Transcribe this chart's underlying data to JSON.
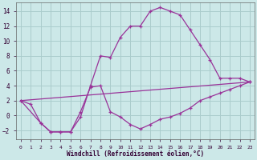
{
  "xlabel": "Windchill (Refroidissement éolien,°C)",
  "background_color": "#cce8e8",
  "grid_color": "#aacccc",
  "line_color": "#993399",
  "xlim": [
    -0.5,
    23.5
  ],
  "ylim": [
    -3.2,
    15.2
  ],
  "xticks": [
    0,
    1,
    2,
    3,
    4,
    5,
    6,
    7,
    8,
    9,
    10,
    11,
    12,
    13,
    14,
    15,
    16,
    17,
    18,
    19,
    20,
    21,
    22,
    23
  ],
  "yticks": [
    -2,
    0,
    2,
    4,
    6,
    8,
    10,
    12,
    14
  ],
  "line1_x": [
    0,
    1,
    2,
    3,
    4,
    5,
    6,
    7,
    8,
    9,
    10,
    11,
    12,
    13,
    14,
    15,
    16,
    17,
    18,
    19,
    20,
    21,
    22,
    23
  ],
  "line1_y": [
    2.0,
    1.5,
    -1.0,
    -2.2,
    -2.2,
    -2.2,
    -0.2,
    4.0,
    8.0,
    7.8,
    10.5,
    12.0,
    12.0,
    14.0,
    14.5,
    14.0,
    13.5,
    11.5,
    9.5,
    7.5,
    5.0,
    5.0,
    5.0,
    4.5
  ],
  "line2_x": [
    0,
    2,
    3,
    4,
    5,
    6,
    7,
    8,
    9,
    10,
    11,
    12,
    13,
    14,
    15,
    16,
    17,
    18,
    19,
    20,
    21,
    22,
    23
  ],
  "line2_y": [
    2.0,
    -1.0,
    -2.2,
    -2.2,
    -2.2,
    0.5,
    3.8,
    4.0,
    0.5,
    -0.2,
    -1.2,
    -1.8,
    -1.2,
    -0.5,
    -0.2,
    0.3,
    1.0,
    2.0,
    2.5,
    3.0,
    3.5,
    4.0,
    4.5
  ],
  "line3_x": [
    0,
    23
  ],
  "line3_y": [
    2.0,
    4.5
  ]
}
